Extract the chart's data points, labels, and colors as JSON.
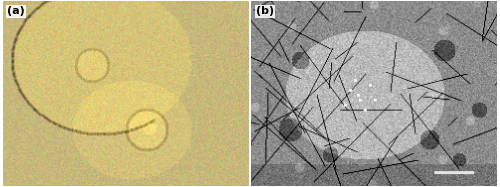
{
  "panel_a_label": "(a)",
  "panel_b_label": "(b)",
  "panel_a_bg_color": "#c8b87a",
  "panel_b_bg_color": "#888888",
  "border_color": "#ffffff",
  "label_fontsize": 8,
  "label_color": "#000000",
  "label_bg": "#ffffff",
  "fig_width": 5.0,
  "fig_height": 1.87,
  "dpi": 100,
  "outer_border_color": "#cccccc"
}
